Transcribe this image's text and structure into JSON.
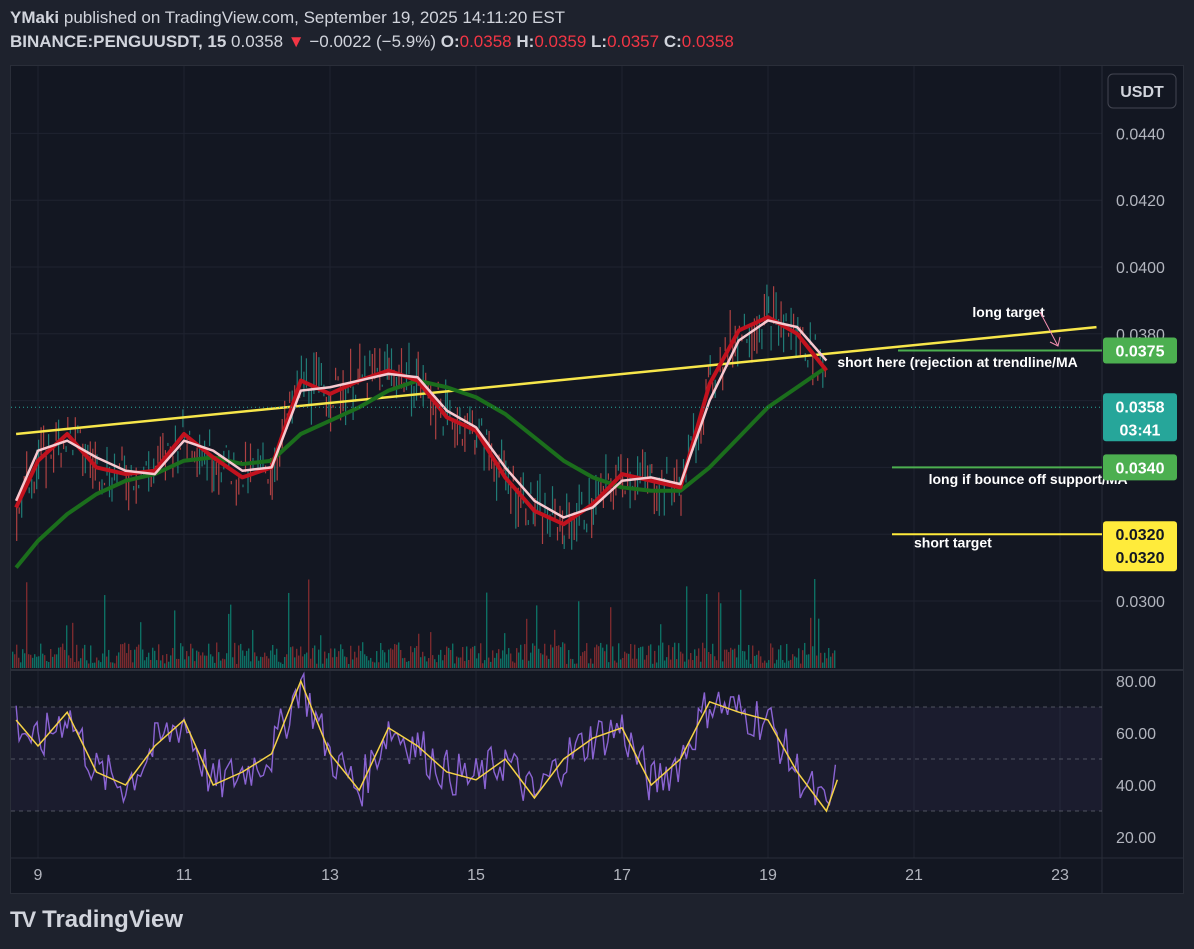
{
  "header": {
    "author": "YMaki",
    "published_text": " published on TradingView.com, September 19, 2025 14:11:20 EST",
    "symbol": "BINANCE:PENGUUSDT, 15",
    "last": "0.0358",
    "change_arrow": "▼",
    "change": "−0.0022 (−5.9%)",
    "o_label": "O:",
    "o": "0.0358",
    "h_label": "H:",
    "h": "0.0359",
    "l_label": "L:",
    "l": "0.0357",
    "c_label": "C:",
    "c": "0.0358"
  },
  "currency_button": "USDT",
  "footer": {
    "brand": "TradingView"
  },
  "colors": {
    "background": "#131722",
    "grid": "#1f2330",
    "trendline": "#f7e64a",
    "fast_ma": "#c2121e",
    "mid_ma": "#f8c8cf",
    "slow_ma": "#1b6e1c",
    "up_volume": "#0d6f63",
    "down_volume": "#7a2a2e",
    "rsi": "#8a63d2",
    "rsi_ma": "#f5d246",
    "green_label": "#26a69a",
    "yellow_label": "#ffeb3b",
    "support_line": "#4caf50"
  },
  "chart_data": [
    {
      "type": "line",
      "panel": "price",
      "title": "",
      "xlabel": "",
      "ylabel": "",
      "x_ticks": [
        "9",
        "11",
        "13",
        "15",
        "17",
        "19",
        "21",
        "23"
      ],
      "y_ticks": [
        "0.0300",
        "0.0320",
        "0.0340",
        "0.0360",
        "0.0380",
        "0.0400",
        "0.0420",
        "0.0440"
      ],
      "ylim": [
        0.0287,
        0.046
      ],
      "grid": true,
      "x": [
        8.7,
        9.0,
        9.4,
        9.8,
        10.2,
        10.6,
        11.0,
        11.4,
        11.8,
        12.2,
        12.6,
        13.0,
        13.4,
        13.8,
        14.2,
        14.6,
        15.0,
        15.4,
        15.8,
        16.2,
        16.6,
        17.0,
        17.4,
        17.8,
        18.2,
        18.6,
        19.0,
        19.4,
        19.8
      ],
      "series": [
        {
          "values": [
            0.0328,
            0.0342,
            0.035,
            0.034,
            0.0338,
            0.0339,
            0.035,
            0.0343,
            0.0337,
            0.034,
            0.0366,
            0.0362,
            0.0366,
            0.0369,
            0.0366,
            0.0355,
            0.0351,
            0.0337,
            0.0327,
            0.0323,
            0.0329,
            0.0338,
            0.0336,
            0.0334,
            0.0365,
            0.0381,
            0.0385,
            0.038,
            0.0369
          ]
        },
        {
          "values": [
            0.033,
            0.0345,
            0.0348,
            0.0343,
            0.0339,
            0.0338,
            0.0348,
            0.0345,
            0.0339,
            0.034,
            0.0363,
            0.0364,
            0.0366,
            0.0368,
            0.0367,
            0.0357,
            0.0352,
            0.034,
            0.033,
            0.0325,
            0.0328,
            0.0336,
            0.0337,
            0.0335,
            0.036,
            0.0378,
            0.0384,
            0.0382,
            0.0372
          ]
        },
        {
          "values": [
            0.031,
            0.0318,
            0.0326,
            0.0332,
            0.0336,
            0.0338,
            0.0342,
            0.0343,
            0.0341,
            0.0342,
            0.035,
            0.0354,
            0.0358,
            0.0363,
            0.0366,
            0.0364,
            0.0361,
            0.0356,
            0.0349,
            0.0342,
            0.0337,
            0.0334,
            0.0333,
            0.0333,
            0.034,
            0.0349,
            0.0358,
            0.0364,
            0.037
          ]
        }
      ],
      "trendline": {
        "x": [
          8.7,
          23.5
        ],
        "y": [
          0.035,
          0.0382
        ]
      },
      "annotations": [
        {
          "text": "long target",
          "x": 21.8,
          "y": 0.0385
        },
        {
          "text": "short here (rejection at trendline/MA",
          "x": 19.95,
          "y": 0.037
        },
        {
          "text": "long if bounce off support/MA",
          "x": 21.2,
          "y": 0.0335
        },
        {
          "text": "short target",
          "x": 21.0,
          "y": 0.0316
        }
      ],
      "levels": [
        {
          "label": "0.0375",
          "value": 0.0375,
          "kind": "green"
        },
        {
          "label": "0.0340",
          "value": 0.034,
          "kind": "green"
        },
        {
          "label": "0.0320",
          "value": 0.032,
          "kind": "yellow"
        }
      ],
      "last_price_label": {
        "value": "0.0358",
        "countdown": "03:41"
      },
      "second_short_target_label": "0.0320"
    },
    {
      "type": "line",
      "panel": "rsi",
      "title": "",
      "y_ticks": [
        "20.00",
        "40.00",
        "60.00",
        "80.00"
      ],
      "ylim": [
        16,
        85
      ],
      "bands": [
        30,
        50,
        70
      ],
      "x": [
        8.7,
        9.0,
        9.4,
        9.8,
        10.2,
        10.6,
        11.0,
        11.4,
        11.8,
        12.2,
        12.6,
        13.0,
        13.4,
        13.8,
        14.2,
        14.6,
        15.0,
        15.4,
        15.8,
        16.2,
        16.6,
        17.0,
        17.4,
        17.8,
        18.2,
        18.6,
        19.0,
        19.4,
        19.8,
        19.95
      ],
      "series": [
        {
          "name": "",
          "values": [
            65,
            55,
            68,
            45,
            40,
            55,
            65,
            40,
            45,
            52,
            80,
            52,
            38,
            62,
            55,
            45,
            42,
            50,
            35,
            50,
            58,
            62,
            40,
            50,
            72,
            68,
            65,
            45,
            30,
            42
          ]
        }
      ]
    }
  ]
}
